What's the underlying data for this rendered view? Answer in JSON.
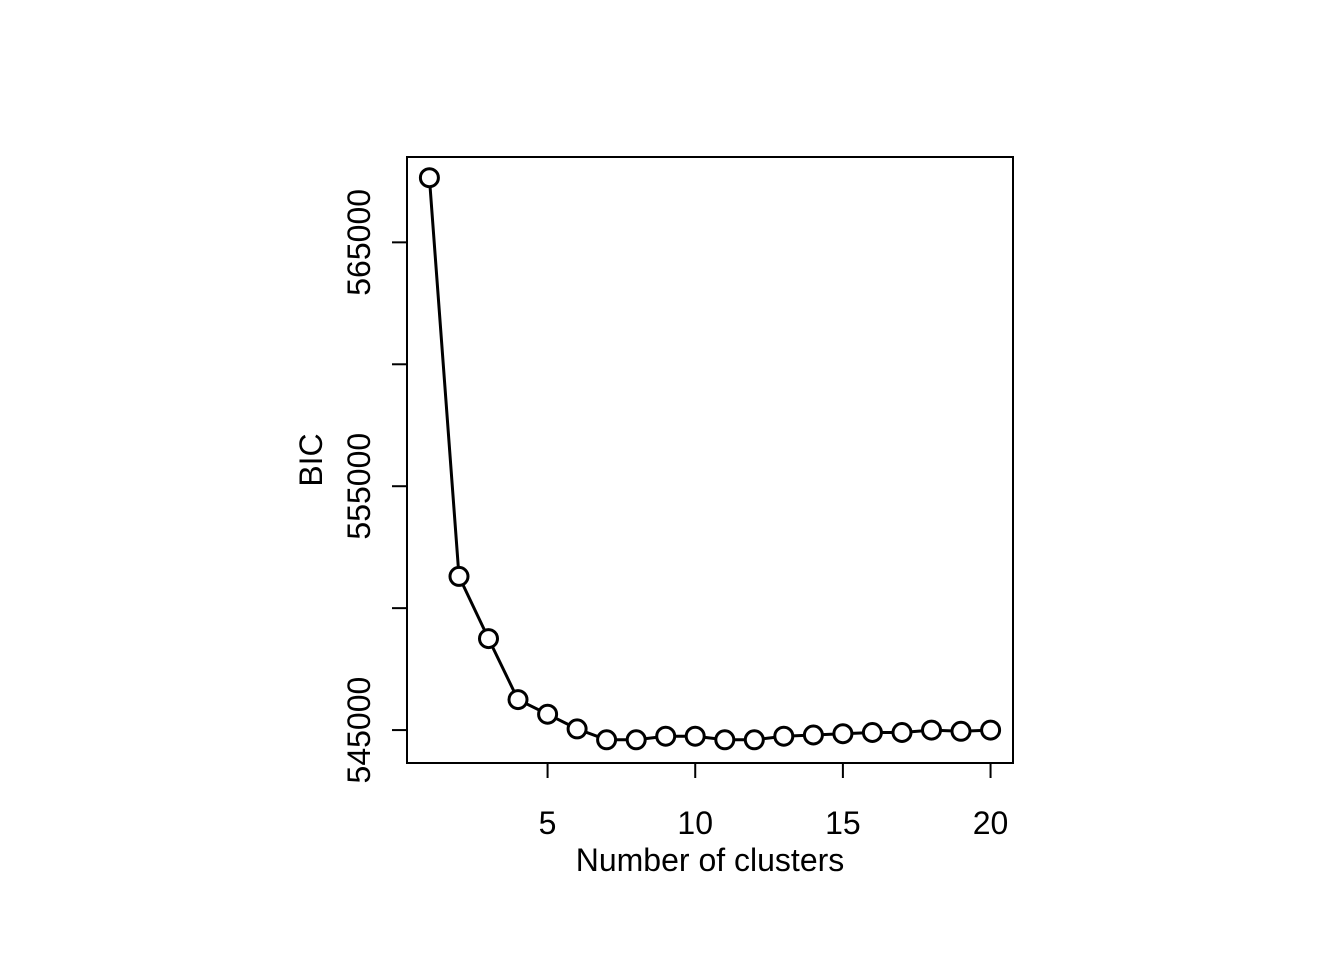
{
  "chart_data": {
    "type": "line",
    "title": "",
    "xlabel": "Number of clusters",
    "ylabel": "BIC",
    "xlim": [
      0.24,
      20.76
    ],
    "ylim": [
      543650,
      568500
    ],
    "x_ticks": [
      5,
      10,
      15,
      20
    ],
    "y_ticks": [
      545000,
      550000,
      555000,
      560000,
      565000
    ],
    "y_tick_labels": [
      "545000",
      "",
      "555000",
      "",
      "565000"
    ],
    "grid": false,
    "legend": "none",
    "line_color": "#000000",
    "marker": "open-circle",
    "x": [
      1,
      2,
      3,
      4,
      5,
      6,
      7,
      8,
      9,
      10,
      11,
      12,
      13,
      14,
      15,
      16,
      17,
      18,
      19,
      20
    ],
    "values": [
      567650,
      551300,
      548750,
      546250,
      545650,
      545050,
      544600,
      544600,
      544750,
      544750,
      544600,
      544600,
      544750,
      544800,
      544850,
      544900,
      544900,
      545000,
      544950,
      545000
    ]
  }
}
